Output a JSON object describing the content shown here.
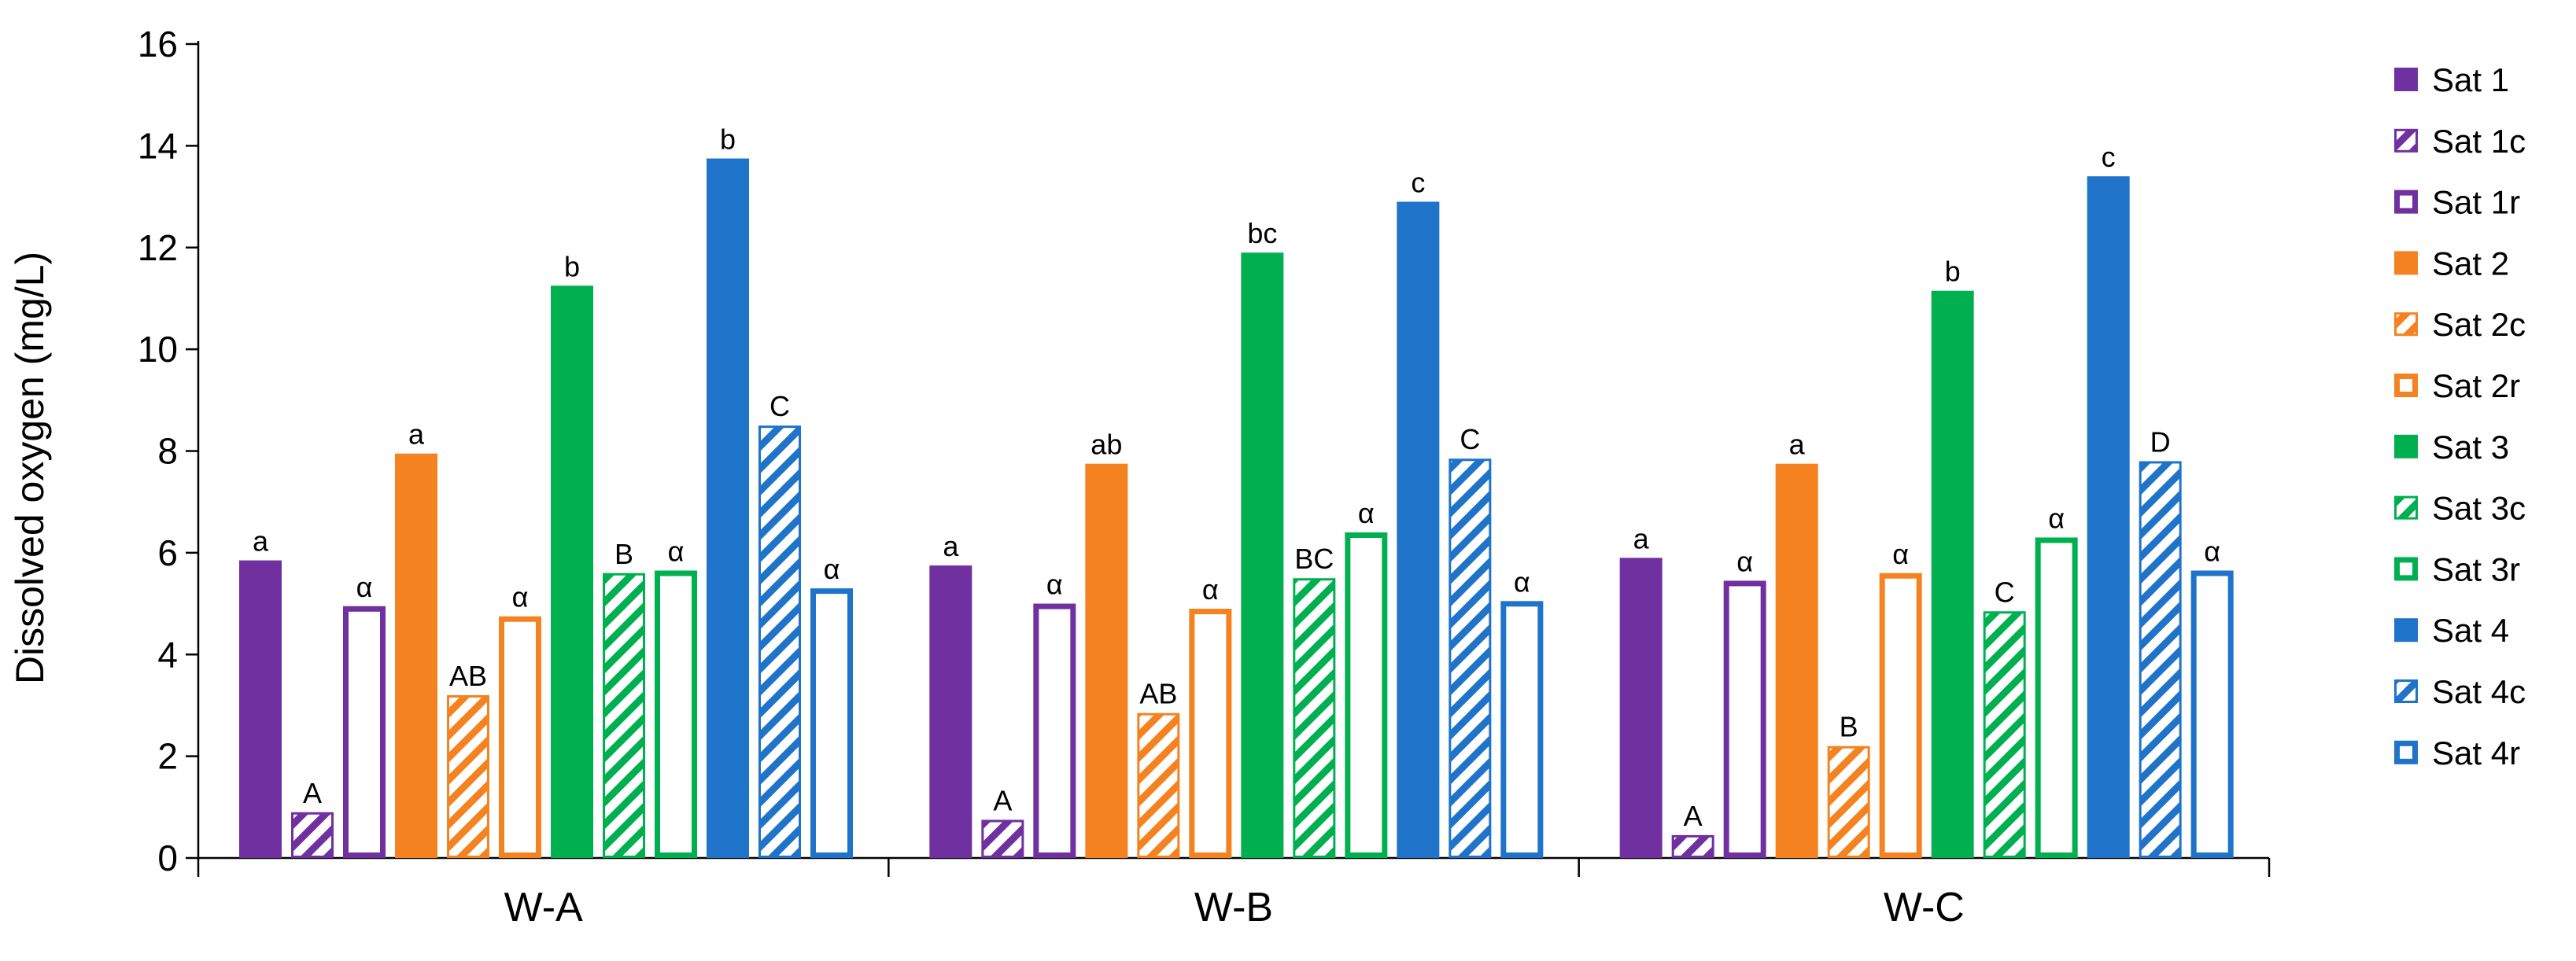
{
  "chart_data": {
    "type": "bar",
    "title": "",
    "xlabel": "",
    "ylabel": "Dissolved oxygen (mg/L)",
    "ylim": [
      0,
      16
    ],
    "yticks": [
      0,
      2,
      4,
      6,
      8,
      10,
      12,
      14,
      16
    ],
    "grid": false,
    "legend_position": "right",
    "categories": [
      "W-A",
      "W-B",
      "W-C"
    ],
    "series": [
      {
        "name": "Sat 1",
        "color": "#7030a0",
        "style": "solid",
        "values": [
          5.85,
          5.75,
          5.9
        ],
        "labels": [
          "a",
          "a",
          "a"
        ]
      },
      {
        "name": "Sat 1c",
        "color": "#7030a0",
        "style": "hatch",
        "values": [
          0.9,
          0.75,
          0.45
        ],
        "labels": [
          "A",
          "A",
          "A"
        ]
      },
      {
        "name": "Sat 1r",
        "color": "#7030a0",
        "style": "hollow",
        "values": [
          4.95,
          5.0,
          5.45
        ],
        "labels": [
          "α",
          "α",
          "α"
        ]
      },
      {
        "name": "Sat 2",
        "color": "#f58220",
        "style": "solid",
        "values": [
          7.95,
          7.75,
          7.75
        ],
        "labels": [
          "a",
          "ab",
          "a"
        ]
      },
      {
        "name": "Sat 2c",
        "color": "#f58220",
        "style": "hatch",
        "values": [
          3.2,
          2.85,
          2.2
        ],
        "labels": [
          "AB",
          "AB",
          "B"
        ]
      },
      {
        "name": "Sat 2r",
        "color": "#f58220",
        "style": "hollow",
        "values": [
          4.75,
          4.9,
          5.6
        ],
        "labels": [
          "α",
          "α",
          "α"
        ]
      },
      {
        "name": "Sat 3",
        "color": "#00b050",
        "style": "solid",
        "values": [
          11.25,
          11.9,
          11.15
        ],
        "labels": [
          "b",
          "bc",
          "b"
        ]
      },
      {
        "name": "Sat 3c",
        "color": "#00b050",
        "style": "hatch",
        "values": [
          5.6,
          5.5,
          4.85
        ],
        "labels": [
          "B",
          "BC",
          "C"
        ]
      },
      {
        "name": "Sat 3r",
        "color": "#00b050",
        "style": "hollow",
        "values": [
          5.65,
          6.4,
          6.3
        ],
        "labels": [
          "α",
          "α",
          "α"
        ]
      },
      {
        "name": "Sat 4",
        "color": "#1f73c8",
        "style": "solid",
        "values": [
          13.75,
          12.9,
          13.4
        ],
        "labels": [
          "b",
          "c",
          "c"
        ]
      },
      {
        "name": "Sat 4c",
        "color": "#1f73c8",
        "style": "hatch",
        "values": [
          8.5,
          7.85,
          7.8
        ],
        "labels": [
          "C",
          "C",
          "D"
        ]
      },
      {
        "name": "Sat 4r",
        "color": "#1f73c8",
        "style": "hollow",
        "values": [
          5.3,
          5.05,
          5.65
        ],
        "labels": [
          "α",
          "α",
          "α"
        ]
      }
    ]
  }
}
